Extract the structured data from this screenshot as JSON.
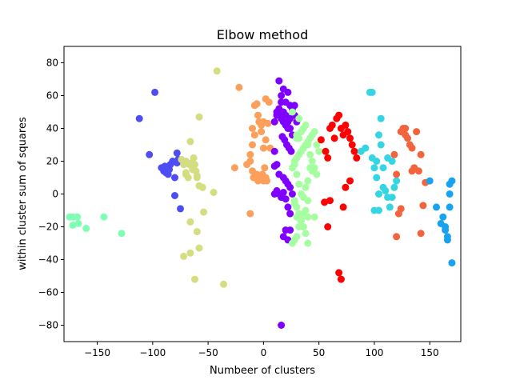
{
  "chart_data": {
    "type": "scatter",
    "title": "Elbow method",
    "xlabel": "Numbeer of clusters",
    "ylabel": "within cluster sum of squares",
    "xlim": [
      -180,
      178
    ],
    "ylim": [
      -90,
      90
    ],
    "xticks": [
      -150,
      -100,
      -50,
      0,
      50,
      100,
      150
    ],
    "yticks": [
      -80,
      -60,
      -40,
      -20,
      0,
      20,
      40,
      60,
      80
    ],
    "xtick_labels": [
      "−150",
      "−100",
      "−50",
      "0",
      "50",
      "100",
      "150"
    ],
    "ytick_labels": [
      "−80",
      "−60",
      "−40",
      "−20",
      "0",
      "20",
      "40",
      "60",
      "80"
    ],
    "grid": false,
    "series": [
      {
        "color": "#80ffb4",
        "x": [
          -175,
          -172,
          -168,
          -172,
          -167,
          -160,
          -144,
          -128
        ],
        "y": [
          -14,
          -14,
          -14,
          -19,
          -18,
          -21,
          -14,
          -24
        ]
      },
      {
        "color": "#4d4df3",
        "x": [
          -112,
          -103,
          -98,
          -92,
          -90,
          -89,
          -88,
          -86,
          -85,
          -84,
          -82,
          -80,
          -78,
          -78,
          -77,
          -80,
          -75
        ],
        "y": [
          46,
          24,
          62,
          16,
          14,
          17,
          13,
          12,
          15,
          18,
          20,
          10,
          25,
          19,
          21,
          -1,
          -9
        ]
      },
      {
        "color": "#d4dd80",
        "x": [
          -74,
          -72,
          -70,
          -70,
          -68,
          -67,
          -66,
          -65,
          -64,
          -63,
          -62,
          -61,
          -60,
          -58,
          -55,
          -45,
          -58,
          -60,
          -54,
          -58,
          -62,
          -66,
          -66,
          -72,
          -70,
          -60,
          -42,
          -36
        ],
        "y": [
          21,
          18,
          20,
          13,
          10,
          18,
          32,
          19,
          15,
          22,
          18,
          14,
          11,
          5,
          4,
          1,
          47,
          -23,
          -11,
          -33,
          -52,
          -36,
          -17,
          -38,
          12,
          10,
          75,
          -55
        ]
      },
      {
        "color": "#fb9f5a",
        "x": [
          -26,
          -22,
          -15,
          -12,
          -10,
          -8,
          -6,
          -4,
          -2,
          0,
          2,
          4,
          -10,
          -8,
          -5,
          -2,
          0,
          2,
          5,
          -12,
          -10,
          -9,
          -6,
          -5,
          -3,
          -1,
          0,
          1,
          2,
          3,
          6,
          -12
        ],
        "y": [
          16,
          65,
          18,
          24,
          30,
          54,
          55,
          44,
          42,
          44,
          33,
          43,
          40,
          36,
          48,
          38,
          28,
          58,
          56,
          20,
          14,
          10,
          12,
          8,
          10,
          12,
          8,
          16,
          10,
          8,
          28,
          -12
        ]
      },
      {
        "color": "#8000ff",
        "x": [
          14,
          16,
          18,
          20,
          22,
          24,
          26,
          28,
          30,
          12,
          14,
          16,
          18,
          20,
          22,
          24,
          26,
          28,
          10,
          12,
          14,
          16,
          18,
          20,
          22,
          24,
          26,
          17,
          19,
          21,
          23,
          25,
          10,
          12,
          14,
          18,
          20,
          22,
          24,
          26,
          20,
          16,
          18,
          22,
          24,
          10,
          12,
          14,
          20,
          18,
          22,
          24,
          10,
          16
        ],
        "y": [
          69,
          60,
          64,
          56,
          62,
          54,
          52,
          48,
          44,
          50,
          48,
          46,
          44,
          42,
          40,
          46,
          50,
          54,
          44,
          48,
          52,
          56,
          50,
          48,
          44,
          40,
          36,
          35,
          33,
          30,
          28,
          26,
          26,
          18,
          12,
          10,
          8,
          6,
          4,
          0,
          -3,
          -2,
          1,
          -8,
          -12,
          0,
          2,
          0,
          -22,
          -26,
          -28,
          -22,
          17,
          -80
        ]
      },
      {
        "color": "#a5fea0",
        "x": [
          28,
          30,
          32,
          34,
          36,
          38,
          40,
          42,
          44,
          46,
          48,
          50,
          30,
          32,
          34,
          36,
          38,
          40,
          42,
          44,
          46,
          48,
          26,
          28,
          30,
          32,
          34,
          36,
          38,
          40,
          42,
          44,
          28,
          30,
          32,
          34,
          36,
          38,
          40,
          26,
          28,
          30,
          32,
          34,
          36,
          38,
          40,
          28,
          30,
          32,
          26,
          28,
          30,
          36,
          40,
          46
        ],
        "y": [
          20,
          22,
          24,
          26,
          28,
          30,
          32,
          34,
          36,
          38,
          30,
          26,
          36,
          34,
          38,
          40,
          42,
          30,
          24,
          20,
          16,
          12,
          16,
          18,
          12,
          6,
          0,
          -2,
          4,
          8,
          16,
          14,
          -4,
          -8,
          -12,
          -16,
          -20,
          -24,
          -14,
          -30,
          -28,
          -26,
          -20,
          -16,
          -12,
          -10,
          -4,
          20,
          34,
          46,
          50,
          -6,
          -14,
          -20,
          -30,
          -14
        ]
      },
      {
        "color": "#ff0000",
        "x": [
          52,
          56,
          58,
          60,
          62,
          64,
          66,
          68,
          70,
          72,
          74,
          76,
          78,
          80,
          82,
          84,
          60,
          58,
          55,
          72,
          68,
          70,
          74,
          78
        ],
        "y": [
          33,
          26,
          22,
          40,
          42,
          34,
          46,
          48,
          40,
          36,
          42,
          38,
          34,
          30,
          26,
          22,
          -4,
          -20,
          -5,
          -8,
          -48,
          -52,
          4,
          8
        ]
      },
      {
        "color": "#35d5e3",
        "x": [
          88,
          92,
          96,
          98,
          100,
          102,
          104,
          106,
          108,
          110,
          112,
          114,
          116,
          118,
          120,
          100,
          102,
          104,
          108,
          112,
          116,
          104,
          106,
          98
        ],
        "y": [
          26,
          28,
          62,
          22,
          16,
          20,
          36,
          46,
          4,
          2,
          -2,
          -8,
          -2,
          4,
          8,
          -10,
          10,
          0,
          16,
          22,
          20,
          -10,
          30,
          62
        ]
      },
      {
        "color": "#f2643c",
        "x": [
          118,
          120,
          122,
          124,
          126,
          128,
          130,
          132,
          134,
          136,
          138,
          140,
          142,
          144,
          146,
          120,
          124,
          128,
          134,
          142
        ],
        "y": [
          24,
          12,
          -12,
          -9,
          40,
          36,
          34,
          30,
          28,
          16,
          38,
          14,
          -24,
          -7,
          7,
          -26,
          38,
          40,
          14,
          24
        ]
      },
      {
        "color": "#18a2ef",
        "x": [
          150,
          156,
          160,
          162,
          164,
          166,
          168,
          170,
          168,
          164,
          166,
          168,
          170
        ],
        "y": [
          8,
          -8,
          -18,
          -14,
          -22,
          -28,
          -8,
          -42,
          6,
          -20,
          -26,
          0,
          8
        ]
      }
    ]
  }
}
